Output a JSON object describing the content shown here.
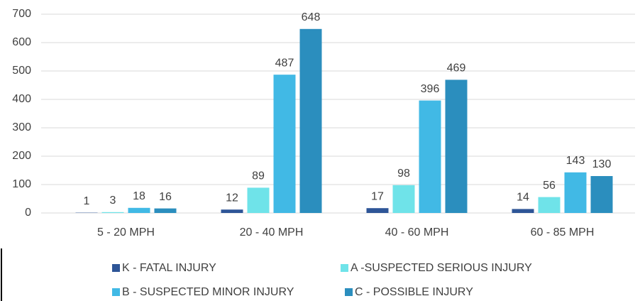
{
  "chart_data": {
    "type": "bar",
    "categories": [
      "5 - 20 MPH",
      "20 - 40 MPH",
      "40 - 60 MPH",
      "60 - 85 MPH"
    ],
    "series": [
      {
        "name": "K - FATAL INJURY",
        "color": "#2e5597",
        "values": [
          1,
          12,
          17,
          14
        ]
      },
      {
        "name": "A -SUSPECTED SERIOUS INJURY",
        "color": "#6fe3e9",
        "values": [
          3,
          89,
          98,
          56
        ]
      },
      {
        "name": "B - SUSPECTED MINOR INJURY",
        "color": "#41b9e5",
        "values": [
          18,
          487,
          396,
          143
        ]
      },
      {
        "name": "C - POSSIBLE INJURY",
        "color": "#2b8ebe",
        "values": [
          16,
          648,
          469,
          130
        ]
      }
    ],
    "ylim": [
      0,
      700
    ],
    "yticks": [
      0,
      100,
      200,
      300,
      400,
      500,
      600,
      700
    ],
    "grid": true,
    "legend": "bottom"
  }
}
